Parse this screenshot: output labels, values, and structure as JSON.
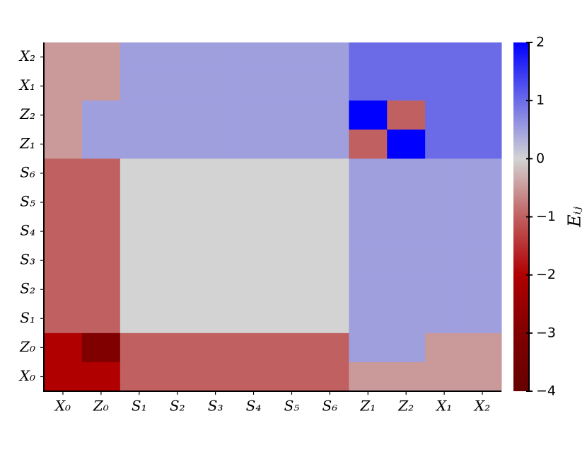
{
  "chart_data": {
    "type": "heatmap",
    "xcategories": [
      "X₀",
      "Z₀",
      "S₁",
      "S₂",
      "S₃",
      "S₄",
      "S₅",
      "S₆",
      "Z₁",
      "Z₂",
      "X₁",
      "X₂"
    ],
    "ycategories": [
      "X₂",
      "X₁",
      "Z₂",
      "Z₁",
      "S₆",
      "S₅",
      "S₄",
      "S₃",
      "S₂",
      "S₁",
      "Z₀",
      "X₀"
    ],
    "values": [
      [
        -0.5,
        -0.5,
        0.5,
        0.5,
        0.5,
        0.5,
        0.5,
        0.5,
        1,
        1,
        1,
        1
      ],
      [
        -0.5,
        -0.5,
        0.5,
        0.5,
        0.5,
        0.5,
        0.5,
        0.5,
        1,
        1,
        1,
        1
      ],
      [
        -0.5,
        0.5,
        0.5,
        0.5,
        0.5,
        0.5,
        0.5,
        0.5,
        2,
        -1,
        1,
        1
      ],
      [
        -0.5,
        0.5,
        0.5,
        0.5,
        0.5,
        0.5,
        0.5,
        0.5,
        -1,
        2,
        1,
        1
      ],
      [
        -1,
        -1,
        0,
        0,
        0,
        0,
        0,
        0,
        0.5,
        0.5,
        0.5,
        0.5
      ],
      [
        -1,
        -1,
        0,
        0,
        0,
        0,
        0,
        0,
        0.5,
        0.5,
        0.5,
        0.5
      ],
      [
        -1,
        -1,
        0,
        0,
        0,
        0,
        0,
        0,
        0.5,
        0.5,
        0.5,
        0.5
      ],
      [
        -1,
        -1,
        0,
        0,
        0,
        0,
        0,
        0,
        0.5,
        0.5,
        0.5,
        0.5
      ],
      [
        -1,
        -1,
        0,
        0,
        0,
        0,
        0,
        0,
        0.5,
        0.5,
        0.5,
        0.5
      ],
      [
        -1,
        -1,
        0,
        0,
        0,
        0,
        0,
        0,
        0.5,
        0.5,
        0.5,
        0.5
      ],
      [
        -2,
        -3,
        -1,
        -1,
        -1,
        -1,
        -1,
        -1,
        0.5,
        0.5,
        -0.5,
        -0.5
      ],
      [
        -2,
        -2,
        -1,
        -1,
        -1,
        -1,
        -1,
        -1,
        -0.5,
        -0.5,
        -0.5,
        -0.5
      ]
    ],
    "colorscale": [
      [
        -4,
        "#660000"
      ],
      [
        -3,
        "#800000"
      ],
      [
        -2,
        "#b00000"
      ],
      [
        -1,
        "#c06060"
      ],
      [
        0,
        "#d3d3d3"
      ],
      [
        1,
        "#6b6be8"
      ],
      [
        2,
        "#0000ff"
      ]
    ],
    "clim": [
      -4,
      2
    ],
    "cticks": [
      {
        "value": -4,
        "label": "−4"
      },
      {
        "value": -3,
        "label": "−3"
      },
      {
        "value": -2,
        "label": "−2"
      },
      {
        "value": -1,
        "label": "−1"
      },
      0,
      1,
      2
    ],
    "colorbar_label": "Eᵢⱼ"
  }
}
